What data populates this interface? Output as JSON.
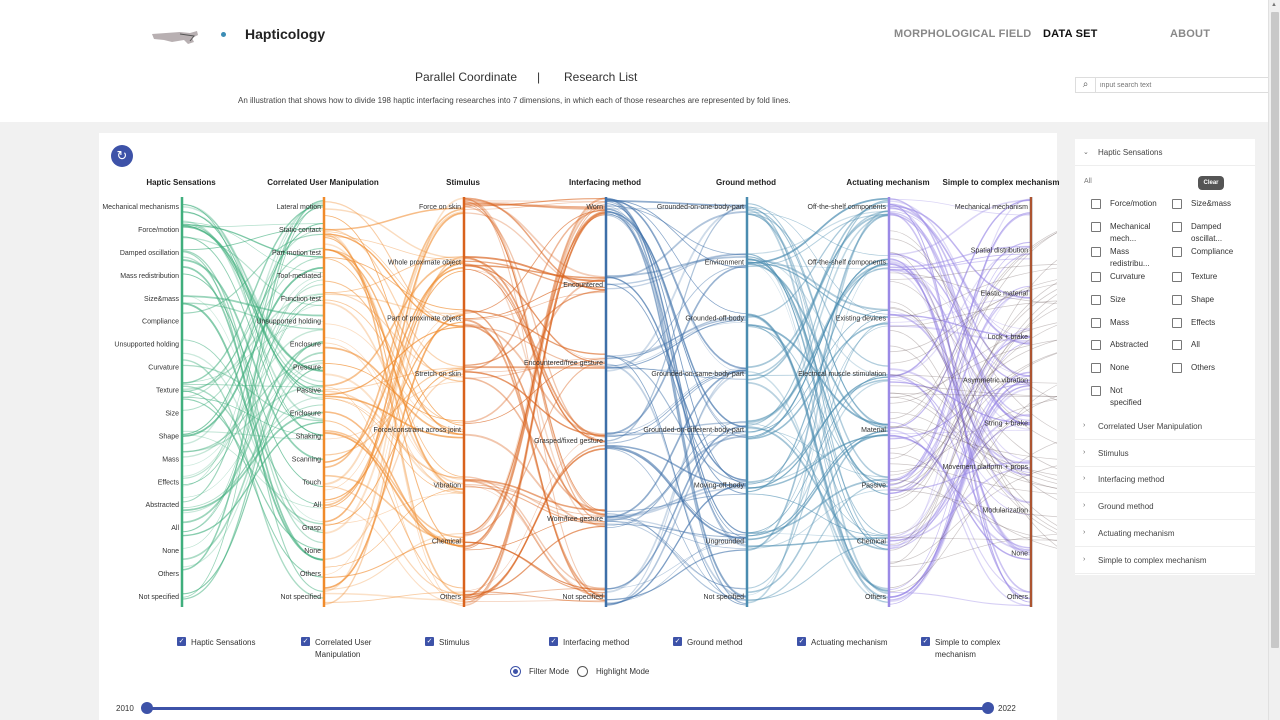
{
  "header": {
    "brand": "Hapticology",
    "nav": {
      "morphological_field": "MORPHOLOGICAL FIELD",
      "data_set": "DATA SET",
      "about": "ABOUT"
    },
    "tabs": {
      "parallel": "Parallel Coordinate",
      "separator": "|",
      "research": "Research List"
    },
    "description": "An illustration that shows how to divide 198 haptic interfacing researches into 7 dimensions,  in which each of those researches are represented by fold lines.",
    "search_placeholder": "input search text"
  },
  "colors": {
    "accent": "#3d52a8",
    "haptic": "#3fae7c",
    "manipulation": "#f08a2a",
    "stimulus": "#d9621c",
    "interfacing": "#3d6fa8",
    "ground": "#4a8cb0",
    "actuating": "#9b8ae6",
    "complex": "#5a4444"
  },
  "chart": {
    "axes": [
      {
        "title": "Haptic Sensations",
        "ticks": [
          "Mechanical mechanisms",
          "Force/motion",
          "Damped oscillation",
          "Mass redistribution",
          "Size&mass",
          "Compliance",
          "Unsupported holding",
          "Curvature",
          "Texture",
          "Size",
          "Shape",
          "Mass",
          "Effects",
          "Abstracted",
          "All",
          "None",
          "Others",
          "Not specified"
        ]
      },
      {
        "title": "Correlated User Manipulation",
        "ticks": [
          "Lateral motion",
          "Static contact",
          "Part motion test",
          "Tool-mediated",
          "Function test",
          "Unsupported holding",
          "Enclosure",
          "Pressure",
          "Passive",
          "Enclosure",
          "Shaking",
          "Scanning",
          "Touch",
          "All",
          "Grasp",
          "None",
          "Others",
          "Not specified"
        ]
      },
      {
        "title": "Stimulus",
        "ticks": [
          "Force on skin",
          "Whole proximate object",
          "Part of proximate object",
          "Stretch on skin",
          "Force/constraint across joint",
          "Vibration",
          "Chemical",
          "Others"
        ]
      },
      {
        "title": "Interfacing method",
        "ticks": [
          "Worn",
          "Encountered",
          "Encountered/free gesture",
          "Grasped/fixed gesture",
          "Worn/free gesture",
          "Not specified"
        ]
      },
      {
        "title": "Ground method",
        "ticks": [
          "Grounded-on-one-body-part",
          "Environment",
          "Grounded-off-body",
          "Grounded-on-same-body-part",
          "Grounded-on-different-body-part",
          "Moving-off-body",
          "Ungrounded",
          "Not specified"
        ]
      },
      {
        "title": "Actuating mechanism",
        "ticks": [
          "Off-the-shelf components",
          "Off-the-shelf components",
          "Existing devices",
          "Electrical muscle stimulation",
          "Material",
          "Passive",
          "Chemical",
          "Others"
        ]
      },
      {
        "title": "Simple to complex mechanism",
        "ticks": [
          "Mechanical mechanism",
          "Spatial distribution",
          "Elastic material",
          "Lock + brake",
          "Asymmetric vibration",
          "String + brake",
          "Movement platform + props",
          "Modularization",
          "None",
          "Others"
        ]
      }
    ]
  },
  "checkboxes": [
    {
      "label": "Haptic Sensations",
      "line2": ""
    },
    {
      "label": "Correlated User",
      "line2": "Manipulation"
    },
    {
      "label": "Stimulus",
      "line2": ""
    },
    {
      "label": "Interfacing method",
      "line2": ""
    },
    {
      "label": "Ground method",
      "line2": ""
    },
    {
      "label": "Actuating mechanism",
      "line2": ""
    },
    {
      "label": "Simple to complex",
      "line2": "mechanism"
    }
  ],
  "modes": {
    "filter": "Filter Mode",
    "highlight": "Highlight Mode",
    "selected": "Filter Mode"
  },
  "years": {
    "start": "2010",
    "end": "2022"
  },
  "filter_panel": {
    "open_section": "Haptic Sensations",
    "all_label": "All",
    "clear_label": "Clear",
    "options": [
      {
        "line1": "Force/motion",
        "line2": ""
      },
      {
        "line1": "Size&mass",
        "line2": ""
      },
      {
        "line1": "Mechanical",
        "line2": "mech..."
      },
      {
        "line1": "Damped",
        "line2": "oscillat..."
      },
      {
        "line1": "Mass",
        "line2": "redistribu..."
      },
      {
        "line1": "Compliance",
        "line2": ""
      },
      {
        "line1": "Curvature",
        "line2": ""
      },
      {
        "line1": "Texture",
        "line2": ""
      },
      {
        "line1": "Size",
        "line2": ""
      },
      {
        "line1": "Shape",
        "line2": ""
      },
      {
        "line1": "Mass",
        "line2": ""
      },
      {
        "line1": "Effects",
        "line2": ""
      },
      {
        "line1": "Abstracted",
        "line2": ""
      },
      {
        "line1": "All",
        "line2": ""
      },
      {
        "line1": "None",
        "line2": ""
      },
      {
        "line1": "Others",
        "line2": ""
      },
      {
        "line1": "Not",
        "line2": "specified"
      }
    ],
    "sections": [
      "Correlated User Manipulation",
      "Stimulus",
      "Interfacing method",
      "Ground method",
      "Actuating mechanism",
      "Simple to complex mechanism"
    ]
  }
}
